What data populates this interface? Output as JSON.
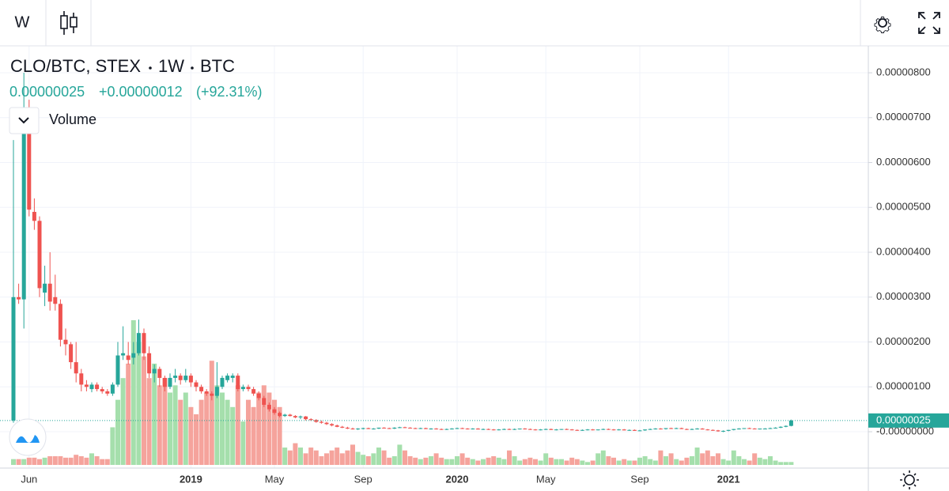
{
  "header": {
    "interval": "W",
    "symbol": "CLO/BTC, STEX",
    "timeframe": "1W",
    "currency": "BTC",
    "price": "0.00000025",
    "change": "+0.00000012",
    "change_percent": "(+92.31%)",
    "volume_label": "Volume"
  },
  "chart_data": {
    "type": "candlestick",
    "categories": [
      null,
      null,
      null,
      "Jun",
      null,
      null,
      null,
      null,
      null,
      null,
      null,
      null,
      null,
      null,
      null,
      null,
      null,
      null,
      null,
      null,
      null,
      null,
      null,
      null,
      null,
      null,
      null,
      null,
      null,
      null,
      null,
      null,
      null,
      null,
      "2019",
      null,
      null,
      null,
      null,
      null,
      null,
      null,
      null,
      null,
      null,
      null,
      null,
      null,
      null,
      null,
      "May",
      null,
      null,
      null,
      null,
      null,
      null,
      null,
      null,
      null,
      null,
      null,
      null,
      null,
      null,
      null,
      null,
      "Sep",
      null,
      null,
      null,
      null,
      null,
      null,
      null,
      null,
      null,
      null,
      null,
      null,
      null,
      null,
      null,
      null,
      null,
      "2020",
      null,
      null,
      null,
      null,
      null,
      null,
      null,
      null,
      null,
      null,
      null,
      null,
      null,
      null,
      null,
      null,
      "May",
      null,
      null,
      null,
      null,
      null,
      null,
      null,
      null,
      null,
      null,
      null,
      null,
      null,
      null,
      null,
      null,
      null,
      "Sep",
      null,
      null,
      null,
      null,
      null,
      null,
      null,
      null,
      null,
      null,
      null,
      null,
      null,
      null,
      null,
      null,
      "2021",
      null,
      null,
      null,
      null,
      null,
      null,
      null,
      null,
      null,
      null,
      null,
      null
    ],
    "candles": [
      [
        2.5e-07,
        6.5e-06,
        2e-07,
        3e-06
      ],
      [
        3e-06,
        3.3e-06,
        2.85e-06,
        2.95e-06
      ],
      [
        2.95e-06,
        8e-06,
        2.3e-06,
        7e-06
      ],
      [
        6.8e-06,
        7.4e-06,
        4.8e-06,
        4.95e-06
      ],
      [
        4.9e-06,
        5.2e-06,
        4.5e-06,
        4.7e-06
      ],
      [
        4.7e-06,
        4.8e-06,
        3e-06,
        3.2e-06
      ],
      [
        3.1e-06,
        3.7e-06,
        2.8e-06,
        3.3e-06
      ],
      [
        3.3e-06,
        4e-06,
        2.7e-06,
        2.9e-06
      ],
      [
        3e-06,
        3.5e-06,
        2.7e-06,
        2.85e-06
      ],
      [
        2.85e-06,
        2.95e-06,
        1.9e-06,
        2.05e-06
      ],
      [
        2.05e-06,
        2.3e-06,
        1.7e-06,
        1.95e-06
      ],
      [
        1.95e-06,
        2e-06,
        1.4e-06,
        1.55e-06
      ],
      [
        1.55e-06,
        2e-06,
        1.1e-06,
        1.3e-06
      ],
      [
        1.3e-06,
        1.4e-06,
        9e-07,
        1.05e-06
      ],
      [
        1.05e-06,
        1.15e-06,
        9e-07,
        1e-06
      ],
      [
        9.5e-07,
        1.1e-06,
        8.8e-07,
        1.05e-06
      ],
      [
        1.05e-06,
        1.1e-06,
        9e-07,
        9.5e-07
      ],
      [
        9.5e-07,
        1e-06,
        8.5e-07,
        9e-07
      ],
      [
        9e-07,
        9.5e-07,
        8e-07,
        8.5e-07
      ],
      [
        8.5e-07,
        1.1e-06,
        8e-07,
        1.05e-06
      ],
      [
        1.05e-06,
        2e-06,
        1e-06,
        1.7e-06
      ],
      [
        1.7e-06,
        2.35e-06,
        1.6e-06,
        1.75e-06
      ],
      [
        1.7e-06,
        2e-06,
        1.5e-06,
        1.6e-06
      ],
      [
        1.65e-06,
        2e-06,
        1.5e-06,
        1.75e-06
      ],
      [
        1.75e-06,
        2.5e-06,
        1.7e-06,
        2.2e-06
      ],
      [
        2.2e-06,
        2.3e-06,
        1.6e-06,
        1.75e-06
      ],
      [
        1.75e-06,
        1.9e-06,
        1.2e-06,
        1.3e-06
      ],
      [
        1.3e-06,
        1.5e-06,
        1.1e-06,
        1.4e-06
      ],
      [
        1.4e-06,
        1.45e-06,
        1e-06,
        1.2e-06
      ],
      [
        1.2e-06,
        1.25e-06,
        9e-07,
        1e-06
      ],
      [
        1e-06,
        1.3e-06,
        9.5e-07,
        1.2e-06
      ],
      [
        1.2e-06,
        1.4e-06,
        1.1e-06,
        1.25e-06
      ],
      [
        1.25e-06,
        1.3e-06,
        1.05e-06,
        1.15e-06
      ],
      [
        1.15e-06,
        1.4e-06,
        1.1e-06,
        1.25e-06
      ],
      [
        1.25e-06,
        1.3e-06,
        1e-06,
        1.1e-06
      ],
      [
        1.1e-06,
        1.15e-06,
        9e-07,
        1e-06
      ],
      [
        1e-06,
        1.05e-06,
        8.5e-07,
        9e-07
      ],
      [
        9e-07,
        9.5e-07,
        8e-07,
        8.5e-07
      ],
      [
        8.5e-07,
        9e-07,
        7e-07,
        8e-07
      ],
      [
        8e-07,
        1.55e-06,
        7.5e-07,
        1e-06
      ],
      [
        1e-06,
        1.25e-06,
        9.5e-07,
        1.2e-06
      ],
      [
        1.15e-06,
        1.3e-06,
        1.1e-06,
        1.25e-06
      ],
      [
        1.2e-06,
        1.3e-06,
        1.1e-06,
        1.25e-06
      ],
      [
        1.25e-06,
        1.3e-06,
        9e-07,
        9.5e-07
      ],
      [
        9.5e-07,
        1.05e-06,
        9e-07,
        1e-06
      ],
      [
        1e-06,
        1.05e-06,
        9e-07,
        9.5e-07
      ],
      [
        9.5e-07,
        1e-06,
        8e-07,
        8.5e-07
      ],
      [
        8.5e-07,
        9e-07,
        7e-07,
        7.5e-07
      ],
      [
        7.5e-07,
        8e-07,
        5.5e-07,
        6e-07
      ],
      [
        6e-07,
        6.5e-07,
        4.5e-07,
        5e-07
      ],
      [
        5e-07,
        5.5e-07,
        3.8e-07,
        4.2e-07
      ],
      [
        4.2e-07,
        4.5e-07,
        3.2e-07,
        3.5e-07
      ],
      [
        3.5e-07,
        4e-07,
        3.3e-07,
        3.8e-07
      ],
      [
        3.8e-07,
        4e-07,
        3.4e-07,
        3.5e-07
      ],
      [
        3.5e-07,
        3.7e-07,
        3e-07,
        3.2e-07
      ],
      [
        3.2e-07,
        3.6e-07,
        2.8e-07,
        3.4e-07
      ],
      [
        3.4e-07,
        3.5e-07,
        2.5e-07,
        2.8e-07
      ],
      [
        2.8e-07,
        3e-07,
        2.4e-07,
        2.6e-07
      ],
      [
        2.6e-07,
        2.8e-07,
        2e-07,
        2.2e-07
      ],
      [
        2.2e-07,
        2.5e-07,
        1.8e-07,
        2e-07
      ],
      [
        2e-07,
        2.2e-07,
        1.5e-07,
        1.7e-07
      ],
      [
        1.7e-07,
        1.9e-07,
        1.2e-07,
        1.4e-07
      ],
      [
        1.4e-07,
        1.6e-07,
        1e-07,
        1.1e-07
      ],
      [
        1.1e-07,
        1.3e-07,
        8e-08,
        9e-08
      ],
      [
        9e-08,
        1.1e-07,
        6e-08,
        7e-08
      ],
      [
        7e-08,
        9e-08,
        5e-08,
        6e-08
      ],
      [
        6e-08,
        8e-08,
        4e-08,
        7e-08
      ],
      [
        7e-08,
        9e-08,
        5e-08,
        8e-08
      ],
      [
        8e-08,
        9e-08,
        6e-08,
        6e-08
      ],
      [
        6e-08,
        8e-08,
        5e-08,
        7e-08
      ],
      [
        7e-08,
        9e-08,
        6e-08,
        9e-08
      ],
      [
        9e-08,
        1e-07,
        7e-08,
        8e-08
      ],
      [
        8e-08,
        9e-08,
        6e-08,
        7e-08
      ],
      [
        7e-08,
        1e-07,
        6e-08,
        9e-08
      ],
      [
        9e-08,
        1.1e-07,
        8e-08,
        1e-07
      ],
      [
        1e-07,
        1.1e-07,
        8e-08,
        9e-08
      ],
      [
        9e-08,
        1e-07,
        7e-08,
        8e-08
      ],
      [
        8e-08,
        9e-08,
        6e-08,
        7e-08
      ],
      [
        7e-08,
        9e-08,
        6e-08,
        8e-08
      ],
      [
        8e-08,
        9e-08,
        6e-08,
        6e-08
      ],
      [
        6e-08,
        8e-08,
        5e-08,
        7e-08
      ],
      [
        7e-08,
        8e-08,
        5e-08,
        6e-08
      ],
      [
        6e-08,
        7e-08,
        4e-08,
        5e-08
      ],
      [
        5e-08,
        7e-08,
        4e-08,
        6e-08
      ],
      [
        6e-08,
        8e-08,
        5e-08,
        7e-08
      ],
      [
        7e-08,
        9e-08,
        6e-08,
        8e-08
      ],
      [
        8e-08,
        9e-08,
        6e-08,
        7e-08
      ],
      [
        7e-08,
        8e-08,
        5e-08,
        6e-08
      ],
      [
        6e-08,
        8e-08,
        5e-08,
        7e-08
      ],
      [
        7e-08,
        8e-08,
        5e-08,
        5e-08
      ],
      [
        5e-08,
        7e-08,
        4e-08,
        6e-08
      ],
      [
        6e-08,
        7e-08,
        4e-08,
        5e-08
      ],
      [
        5e-08,
        6e-08,
        3e-08,
        4e-08
      ],
      [
        4e-08,
        6e-08,
        3e-08,
        5e-08
      ],
      [
        5e-08,
        7e-08,
        4e-08,
        6e-08
      ],
      [
        6e-08,
        7e-08,
        4e-08,
        5e-08
      ],
      [
        5e-08,
        7e-08,
        4e-08,
        6e-08
      ],
      [
        6e-08,
        7e-08,
        5e-08,
        7e-08
      ],
      [
        7e-08,
        8e-08,
        5e-08,
        6e-08
      ],
      [
        6e-08,
        7e-08,
        4e-08,
        5e-08
      ],
      [
        5e-08,
        6e-08,
        3e-08,
        4e-08
      ],
      [
        4e-08,
        6e-08,
        3e-08,
        5e-08
      ],
      [
        5e-08,
        7e-08,
        4e-08,
        6e-08
      ],
      [
        6e-08,
        7e-08,
        4e-08,
        4e-08
      ],
      [
        4e-08,
        6e-08,
        3e-08,
        5e-08
      ],
      [
        5e-08,
        6e-08,
        4e-08,
        6e-08
      ],
      [
        6e-08,
        7e-08,
        4e-08,
        5e-08
      ],
      [
        5e-08,
        6e-08,
        3e-08,
        4e-08
      ],
      [
        4e-08,
        5e-08,
        2e-08,
        3e-08
      ],
      [
        3e-08,
        5e-08,
        2e-08,
        4e-08
      ],
      [
        4e-08,
        6e-08,
        3e-08,
        5e-08
      ],
      [
        5e-08,
        6e-08,
        3e-08,
        4e-08
      ],
      [
        4e-08,
        5e-08,
        3e-08,
        5e-08
      ],
      [
        5e-08,
        7e-08,
        4e-08,
        6e-08
      ],
      [
        6e-08,
        7e-08,
        4e-08,
        5e-08
      ],
      [
        5e-08,
        6e-08,
        3e-08,
        4e-08
      ],
      [
        4e-08,
        6e-08,
        3e-08,
        5e-08
      ],
      [
        5e-08,
        6e-08,
        3e-08,
        3e-08
      ],
      [
        3e-08,
        5e-08,
        2e-08,
        4e-08
      ],
      [
        4e-08,
        5e-08,
        2e-08,
        2e-08
      ],
      [
        2e-08,
        4e-08,
        1e-08,
        3e-08
      ],
      [
        3e-08,
        5e-08,
        2e-08,
        5e-08
      ],
      [
        5e-08,
        7e-08,
        4e-08,
        6e-08
      ],
      [
        6e-08,
        8e-08,
        5e-08,
        7e-08
      ],
      [
        7e-08,
        8e-08,
        5e-08,
        6e-08
      ],
      [
        6e-08,
        8e-08,
        5e-08,
        8e-08
      ],
      [
        8e-08,
        9e-08,
        6e-08,
        7e-08
      ],
      [
        7e-08,
        9e-08,
        6e-08,
        8e-08
      ],
      [
        8e-08,
        9e-08,
        6e-08,
        6e-08
      ],
      [
        6e-08,
        7e-08,
        4e-08,
        5e-08
      ],
      [
        5e-08,
        7e-08,
        4e-08,
        6e-08
      ],
      [
        6e-08,
        8e-08,
        5e-08,
        7e-08
      ],
      [
        7e-08,
        8e-08,
        5e-08,
        5e-08
      ],
      [
        5e-08,
        6e-08,
        3e-08,
        4e-08
      ],
      [
        4e-08,
        5e-08,
        2e-08,
        3e-08
      ],
      [
        3e-08,
        4e-08,
        0,
        1e-08
      ],
      [
        1e-08,
        3e-08,
        -1e-08,
        2e-08
      ],
      [
        2e-08,
        4e-08,
        1e-08,
        4e-08
      ],
      [
        4e-08,
        6e-08,
        3e-08,
        6e-08
      ],
      [
        6e-08,
        8e-08,
        5e-08,
        7e-08
      ],
      [
        7e-08,
        8e-08,
        6e-08,
        8e-08
      ],
      [
        8e-08,
        9e-08,
        6e-08,
        7e-08
      ],
      [
        7e-08,
        8e-08,
        6e-08,
        6e-08
      ],
      [
        6e-08,
        7e-08,
        5e-08,
        7e-08
      ],
      [
        7e-08,
        8e-08,
        6e-08,
        7e-08
      ],
      [
        7e-08,
        9e-08,
        6e-08,
        8e-08
      ],
      [
        8e-08,
        1e-07,
        7e-08,
        9e-08
      ],
      [
        9e-08,
        1.2e-07,
        8e-08,
        1.1e-07
      ],
      [
        1.1e-07,
        1.4e-07,
        1e-07,
        1.3e-07
      ],
      [
        1.3e-07,
        2.7e-07,
        1.2e-07,
        2.5e-07
      ]
    ],
    "volume": [
      4,
      4,
      4,
      5,
      5,
      4,
      5,
      6,
      6,
      6,
      5,
      5,
      7,
      6,
      5,
      8,
      6,
      4,
      4,
      26,
      45,
      60,
      70,
      100,
      85,
      75,
      60,
      70,
      55,
      60,
      50,
      55,
      45,
      50,
      40,
      35,
      45,
      50,
      72,
      55,
      50,
      45,
      40,
      55,
      30,
      45,
      40,
      50,
      55,
      50,
      45,
      40,
      12,
      10,
      15,
      12,
      8,
      12,
      10,
      6,
      8,
      10,
      12,
      8,
      10,
      14,
      9,
      7,
      6,
      8,
      12,
      10,
      5,
      6,
      14,
      10,
      6,
      5,
      4,
      5,
      6,
      8,
      5,
      4,
      4,
      6,
      8,
      5,
      4,
      3,
      4,
      5,
      6,
      5,
      4,
      10,
      6,
      3,
      4,
      5,
      4,
      3,
      8,
      5,
      4,
      4,
      3,
      5,
      4,
      3,
      2,
      3,
      8,
      10,
      6,
      5,
      3,
      4,
      3,
      3,
      5,
      6,
      4,
      3,
      10,
      6,
      8,
      4,
      3,
      5,
      6,
      12,
      8,
      10,
      6,
      8,
      4,
      3,
      10,
      6,
      4,
      3,
      8,
      5,
      4,
      6,
      3,
      2,
      2,
      2
    ],
    "volume_ylim": [
      0,
      100
    ],
    "up_color": "#26a69a",
    "down_color": "#ef5350",
    "volume_up_color": "#a5dfac",
    "volume_down_color": "#f5a39c",
    "ylim": [
      -8.1e-07,
      8.6e-06
    ],
    "yticks": [
      {
        "value": 8e-06,
        "label": "0.00000800"
      },
      {
        "value": 7e-06,
        "label": "0.00000700"
      },
      {
        "value": 6e-06,
        "label": "0.00000600"
      },
      {
        "value": 5e-06,
        "label": "0.00000500"
      },
      {
        "value": 4e-06,
        "label": "0.00000400"
      },
      {
        "value": 3e-06,
        "label": "0.00000300"
      },
      {
        "value": 2e-06,
        "label": "0.00000200"
      },
      {
        "value": 1e-06,
        "label": "0.00000100"
      },
      {
        "value": 0,
        "label": "-0.00000000"
      }
    ],
    "last_value": {
      "value": 2.5e-07,
      "label": "0.00000025"
    },
    "grid": true
  }
}
